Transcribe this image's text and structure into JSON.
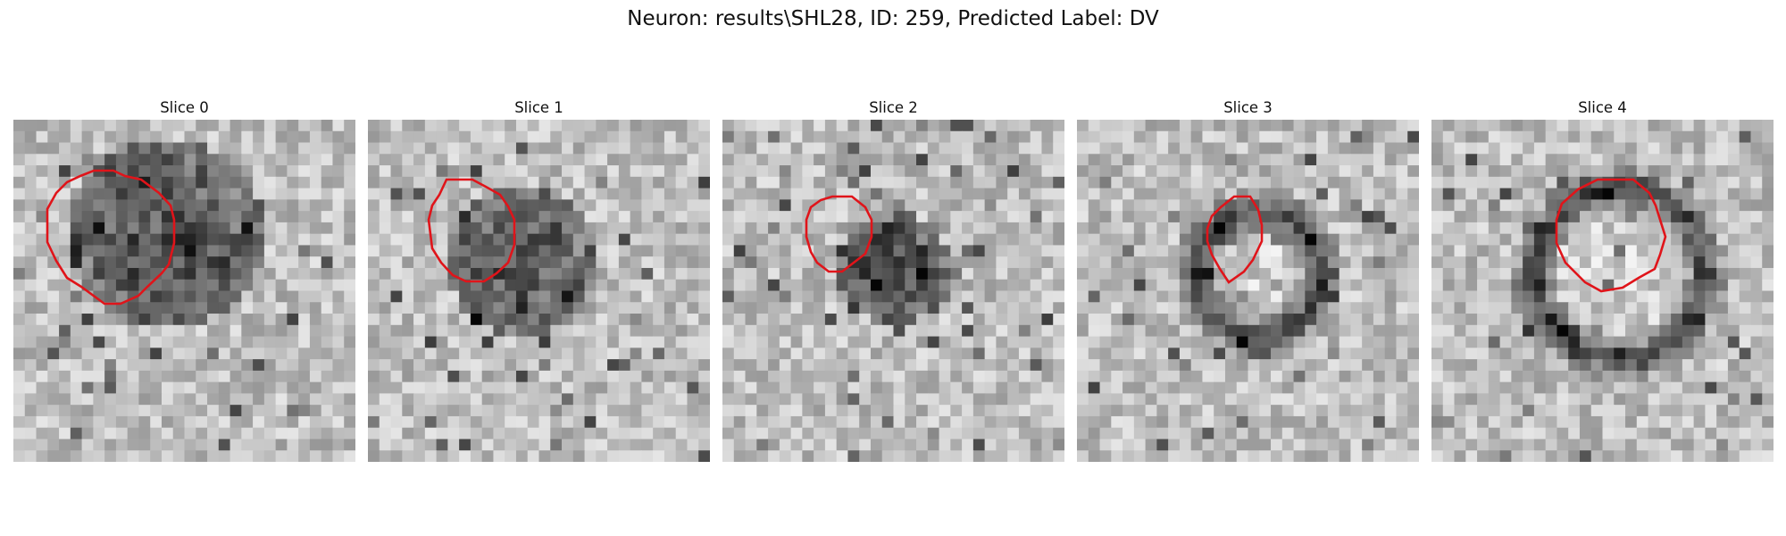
{
  "figure": {
    "title": "Neuron: results\\SHL28, ID: 259, Predicted Label: DV",
    "contour_color": "#e0141a",
    "colormap": "grayscale"
  },
  "slices": [
    {
      "title": "Slice 0",
      "blob": "dark-solid"
    },
    {
      "title": "Slice 1",
      "blob": "dark-solid"
    },
    {
      "title": "Slice 2",
      "blob": "dark-small"
    },
    {
      "title": "Slice 3",
      "blob": "dark-ring"
    },
    {
      "title": "Slice 4",
      "blob": "dark-ring"
    }
  ]
}
